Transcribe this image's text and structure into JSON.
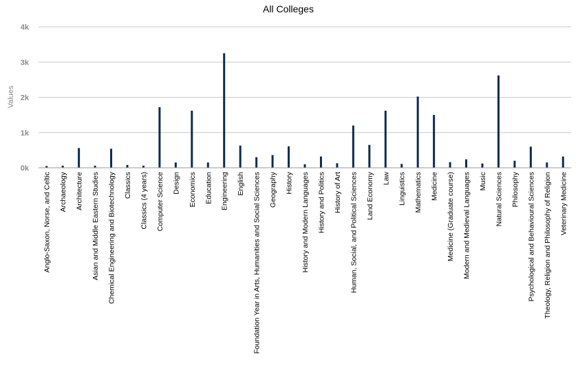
{
  "chart_data": {
    "type": "bar",
    "title": "All Colleges",
    "xlabel": "",
    "ylabel": "Values",
    "ylim": [
      0,
      4000
    ],
    "yticks": [
      0,
      1000,
      2000,
      3000,
      4000
    ],
    "ytick_labels": [
      "0k",
      "1k",
      "2k",
      "3k",
      "4k"
    ],
    "grid": true,
    "legend": "none",
    "bar_color": "#0d2b4f",
    "categories": [
      "Anglo-Saxon, Norse, and Celtic",
      "Archaeology",
      "Architecture",
      "Asian and Middle Eastern Studies",
      "Chemical Engineering and Biotechnology",
      "Classics",
      "Classics (4 years)",
      "Computer Science",
      "Design",
      "Economics",
      "Education",
      "Engineering",
      "English",
      "Foundation Year in Arts, Humanities and Social Sciences",
      "Geography",
      "History",
      "History and Modern Languages",
      "History and Politics",
      "History of Art",
      "Human, Social, and Political Sciences",
      "Land Economy",
      "Law",
      "Linguistics",
      "Mathematics",
      "Medicine",
      "Medicine (Graduate course)",
      "Modern and Medieval Languages",
      "Music",
      "Natural Sciences",
      "Philosophy",
      "Psychological and Behavioural Sciences",
      "Theology, Religion and Philosophy of Religion",
      "Veterinary Medicine"
    ],
    "values": [
      50,
      60,
      560,
      60,
      540,
      80,
      60,
      1720,
      150,
      1620,
      150,
      3250,
      630,
      300,
      360,
      610,
      100,
      320,
      130,
      1200,
      650,
      1620,
      110,
      2020,
      1500,
      160,
      240,
      120,
      2620,
      200,
      600,
      150,
      320
    ]
  }
}
